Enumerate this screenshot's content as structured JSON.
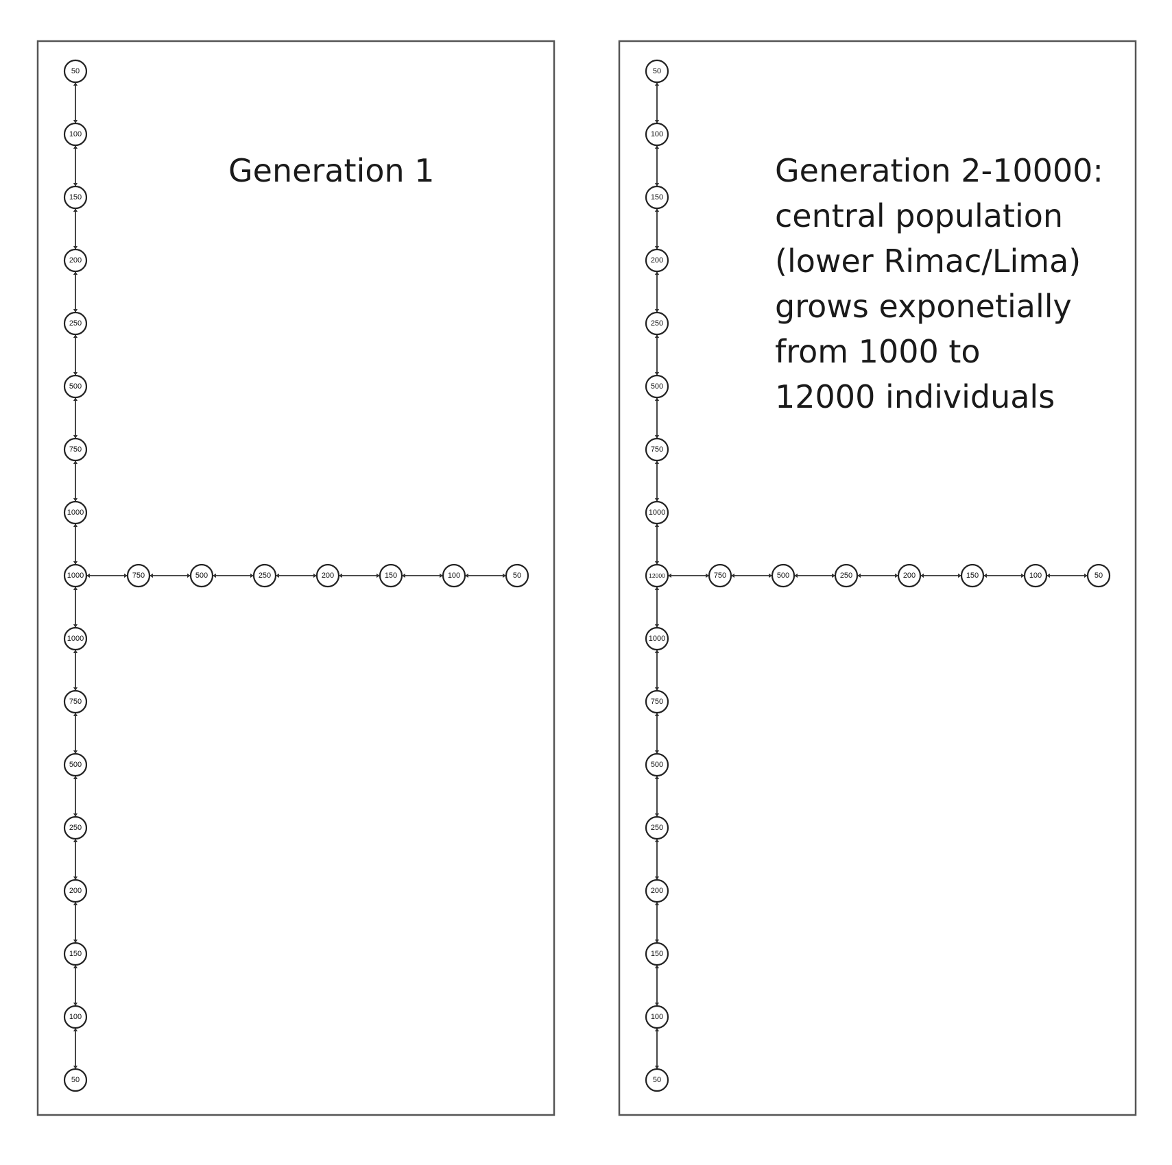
{
  "panels": [
    {
      "id": "generation-1",
      "caption_lines": [
        "Generation 1"
      ],
      "vertical_upper": [
        "50",
        "100",
        "150",
        "200",
        "250",
        "500",
        "750",
        "1000"
      ],
      "center": "1000",
      "vertical_lower": [
        "1000",
        "750",
        "500",
        "250",
        "200",
        "150",
        "100",
        "50"
      ],
      "horizontal": [
        "750",
        "500",
        "250",
        "200",
        "150",
        "100",
        "50"
      ]
    },
    {
      "id": "generation-2-10000",
      "caption_lines": [
        "Generation 2-10000:",
        "central population",
        "(lower Rimac/Lima)",
        "grows exponetially",
        "from 1000 to",
        "12000 individuals"
      ],
      "vertical_upper": [
        "50",
        "100",
        "150",
        "200",
        "250",
        "500",
        "750",
        "1000"
      ],
      "center": "12000",
      "vertical_lower": [
        "1000",
        "750",
        "500",
        "250",
        "200",
        "150",
        "100",
        "50"
      ],
      "horizontal": [
        "750",
        "500",
        "250",
        "200",
        "150",
        "100",
        "50"
      ]
    }
  ]
}
